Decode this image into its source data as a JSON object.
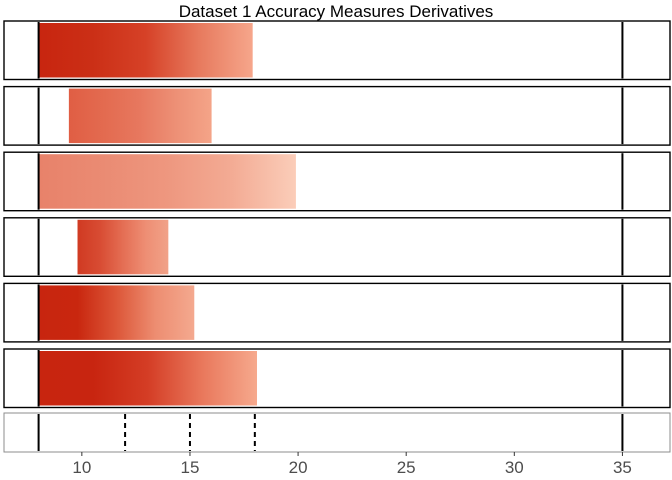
{
  "chart_data": {
    "type": "bar",
    "title": "Dataset 1 Accuracy Measures Derivatives",
    "xlabel": "",
    "ylabel": "",
    "xlim": [
      6.4,
      37.2
    ],
    "x_ticks": [
      10,
      15,
      20,
      25,
      30,
      35
    ],
    "tick_labels": [
      "10",
      "15",
      "20",
      "25",
      "30",
      "35"
    ],
    "grid": false,
    "legend": "none",
    "bars": [
      {
        "start": 8.0,
        "end": 17.9,
        "colors": [
          "#c8250f",
          "#cb2f16",
          "#d64127",
          "#e77a5e",
          "#f6a68b"
        ]
      },
      {
        "start": 9.4,
        "end": 16.0,
        "colors": [
          "#e05e44",
          "#e36b50",
          "#e7785f",
          "#ed9076",
          "#f4a488"
        ]
      },
      {
        "start": 8.0,
        "end": 19.9,
        "colors": [
          "#e8826a",
          "#ea8b73",
          "#ee977f",
          "#f3ab94",
          "#fbcdb9"
        ]
      },
      {
        "start": 9.8,
        "end": 14.0,
        "colors": [
          "#d03a22",
          "#d84c33",
          "#e46e54",
          "#ee8e74",
          "#f1a288"
        ]
      },
      {
        "start": 8.0,
        "end": 15.2,
        "colors": [
          "#c8250f",
          "#c9270f",
          "#dc5638",
          "#ed8d71",
          "#f4a98f"
        ]
      },
      {
        "start": 8.0,
        "end": 18.1,
        "colors": [
          "#c8250f",
          "#c82510",
          "#d43d25",
          "#e9785c",
          "#f6a98d"
        ]
      }
    ],
    "solid_reference_lines": [
      8.0,
      35.0
    ],
    "dashed_reference_lines": [
      12.0,
      15.0,
      18.0
    ],
    "colors": {
      "line": "#000000",
      "panel_border": "#000000",
      "bottom_panel_border": "#8c8c8c"
    }
  }
}
